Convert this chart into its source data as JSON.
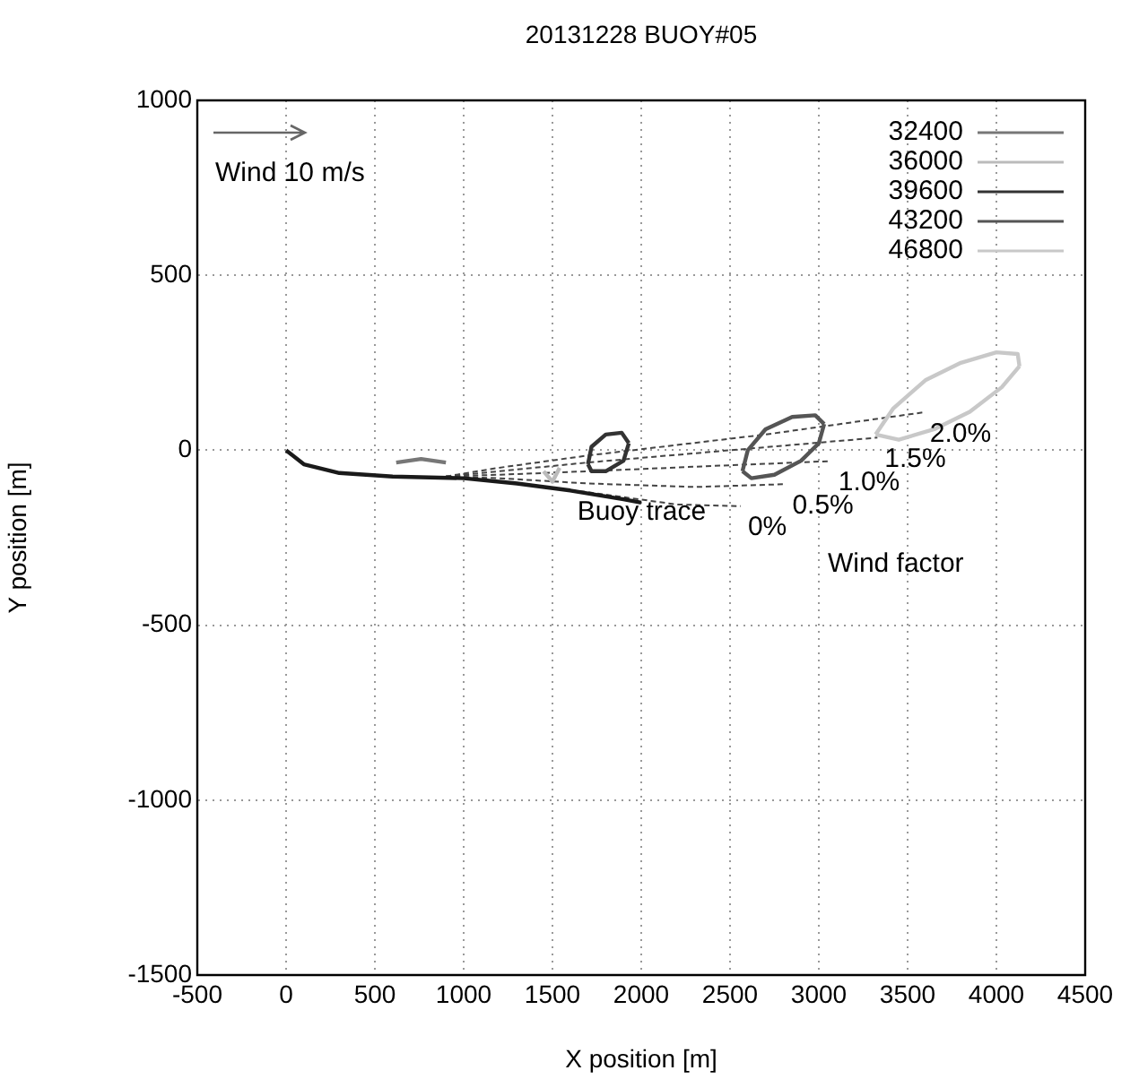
{
  "chart_data": {
    "type": "line",
    "title": "20131228 BUOY#05",
    "xlabel": "X position [m]",
    "ylabel": "Y position [m]",
    "xlim": [
      -500,
      4500
    ],
    "xticks": [
      -500,
      0,
      500,
      1000,
      1500,
      2000,
      2500,
      3000,
      3500,
      4000,
      4500
    ],
    "ylim": [
      -1500,
      1000
    ],
    "yticks": [
      -1500,
      -1000,
      -500,
      0,
      500,
      1000
    ],
    "grid": true,
    "legend": "top right",
    "marker": "none",
    "series": [
      {
        "color": "#1a1a1a",
        "x": [
          0,
          100,
          300,
          600,
          1000,
          1300,
          1600,
          1900,
          2000
        ],
        "values": [
          0,
          -40,
          -65,
          -75,
          -80,
          -95,
          -115,
          -140,
          -150
        ]
      },
      {
        "color": "#444444",
        "line_style": "dashed",
        "x": [
          900,
          1200,
          1700,
          2200,
          2560
        ],
        "values": [
          -75,
          -90,
          -120,
          -155,
          -160
        ]
      },
      {
        "color": "#444444",
        "line_style": "dashed",
        "x": [
          900,
          1200,
          1700,
          2300,
          2810
        ],
        "values": [
          -75,
          -80,
          -95,
          -105,
          -97
        ]
      },
      {
        "color": "#444444",
        "line_style": "dashed",
        "x": [
          900,
          1200,
          1700,
          2400,
          3070
        ],
        "values": [
          -75,
          -70,
          -60,
          -45,
          -31
        ]
      },
      {
        "color": "#444444",
        "line_style": "dashed",
        "x": [
          900,
          1200,
          1700,
          2500,
          3330
        ],
        "values": [
          -75,
          -60,
          -35,
          0,
          36
        ]
      },
      {
        "color": "#444444",
        "line_style": "dashed",
        "x": [
          900,
          1200,
          1700,
          2700,
          3585
        ],
        "values": [
          -75,
          -50,
          -15,
          45,
          108
        ]
      },
      {
        "name": "32400",
        "color": "#777777",
        "x": [
          620,
          760,
          900
        ],
        "values": [
          -35,
          -25,
          -35
        ]
      },
      {
        "name": "36000",
        "color": "#bbbbbb",
        "x": [
          1450,
          1500,
          1540
        ],
        "values": [
          -60,
          -90,
          -50
        ]
      },
      {
        "name": "39600",
        "color": "#333333",
        "x": [
          1700,
          1720,
          1800,
          1890,
          1930
        ],
        "values": [
          -40,
          10,
          45,
          50,
          20
        ]
      },
      {
        "color": "#333333",
        "x": [
          1700,
          1720,
          1800,
          1900,
          1930
        ],
        "values": [
          -40,
          -60,
          -60,
          -30,
          20
        ]
      },
      {
        "name": "43200",
        "color": "#555555",
        "x": [
          2570,
          2600,
          2700,
          2850,
          2980,
          3030
        ],
        "values": [
          -60,
          0,
          60,
          95,
          100,
          75
        ]
      },
      {
        "color": "#555555",
        "x": [
          2570,
          2620,
          2750,
          2900,
          3000,
          3030
        ],
        "values": [
          -60,
          -80,
          -70,
          -30,
          20,
          75
        ]
      },
      {
        "name": "46800",
        "color": "#c8c8c8",
        "x": [
          3320,
          3420,
          3600,
          3800,
          4000,
          4120,
          4130
        ],
        "values": [
          45,
          120,
          200,
          250,
          280,
          275,
          240
        ]
      },
      {
        "color": "#c8c8c8",
        "x": [
          3320,
          3450,
          3650,
          3850,
          4030,
          4130
        ],
        "values": [
          45,
          30,
          60,
          110,
          180,
          240
        ]
      }
    ],
    "annotations": [
      "Wind 10 m/s",
      {
        "text": "Buoy trace",
        "x": 1600,
        "y": -115
      },
      {
        "text": "0%",
        "x": 2560,
        "y": -160
      },
      {
        "text": "0.5%",
        "x": 2810,
        "y": -97
      },
      {
        "text": "1.0%",
        "x": 3070,
        "y": -31
      },
      {
        "text": "1.5%",
        "x": 3330,
        "y": 36
      },
      {
        "text": "2.0%",
        "x": 3585,
        "y": 108
      },
      "Wind factor"
    ]
  }
}
